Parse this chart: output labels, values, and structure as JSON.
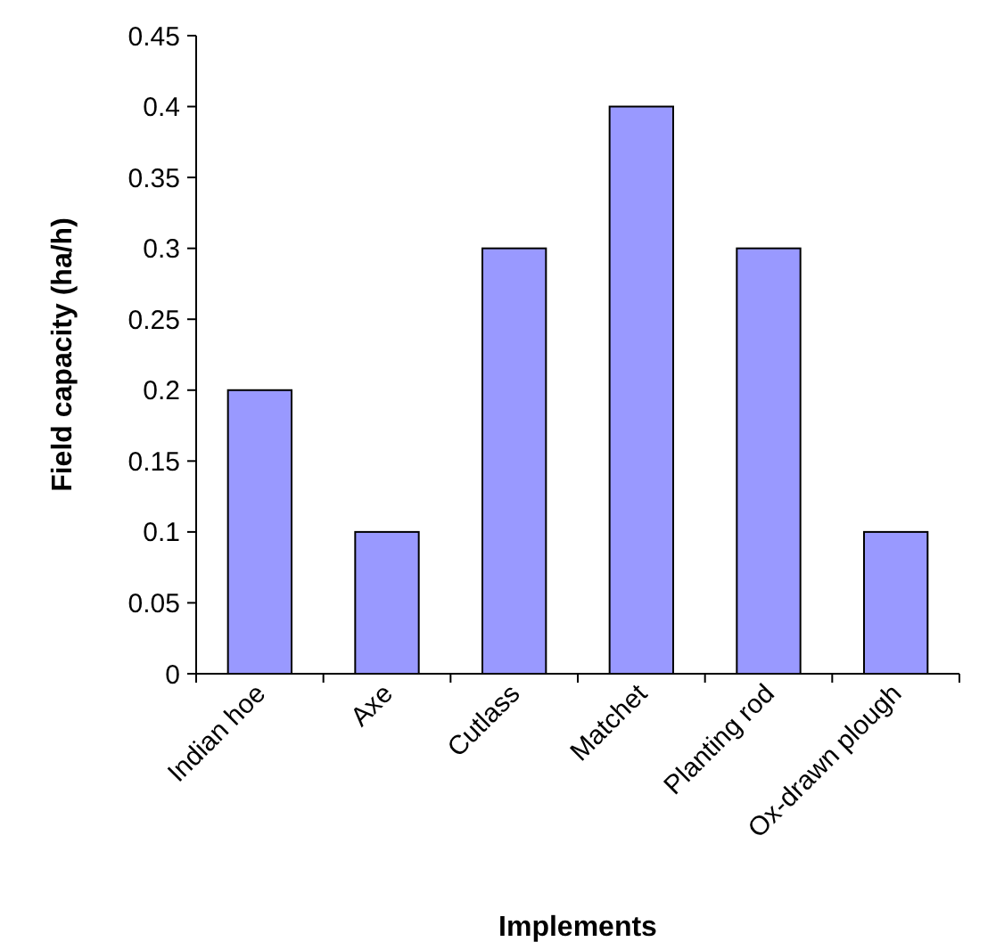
{
  "chart_data": {
    "type": "bar",
    "xlabel": "Implements",
    "ylabel": "Field capacity (ha/h)",
    "categories": [
      "Indian hoe",
      "Axe",
      "Cutlass",
      "Matchet",
      "Planting rod",
      "Ox-drawn plough"
    ],
    "values": [
      0.2,
      0.1,
      0.3,
      0.4,
      0.3,
      0.1
    ],
    "color": "#9999ff",
    "ylim": [
      0,
      0.45
    ],
    "yticks": [
      0,
      0.05,
      0.1,
      0.15,
      0.2,
      0.25,
      0.3,
      0.35,
      0.4,
      0.45
    ],
    "grid": false
  }
}
